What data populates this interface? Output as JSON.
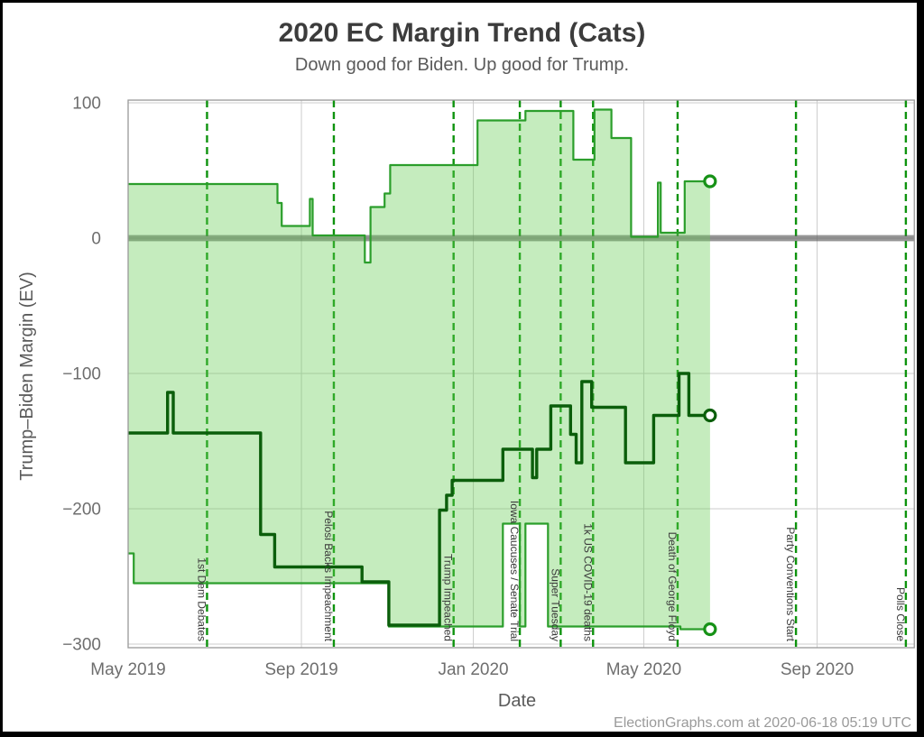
{
  "title": "2020 EC Margin Trend (Cats)",
  "subtitle": "Down good for Biden. Up good for Trump.",
  "footer": "ElectionGraphs.com at 2020-06-18 05:19 UTC",
  "chart_data": {
    "type": "area",
    "title": "2020 EC Margin Trend (Cats)",
    "subtitle": "Down good for Biden. Up good for Trump.",
    "xlabel": "Date",
    "ylabel": "Trump–Biden Margin (EV)",
    "x_domain": [
      "2019-05-01",
      "2020-11-09"
    ],
    "ylim": [
      -303,
      102
    ],
    "grid": true,
    "legend": "none",
    "x_ticks": [
      {
        "date": "2019-05-01",
        "label": "May 2019"
      },
      {
        "date": "2019-09-01",
        "label": "Sep 2019"
      },
      {
        "date": "2020-01-01",
        "label": "Jan 2020"
      },
      {
        "date": "2020-05-01",
        "label": "May 2020"
      },
      {
        "date": "2020-09-01",
        "label": "Sep 2020"
      }
    ],
    "y_ticks": [
      {
        "value": 100,
        "label": "100"
      },
      {
        "value": 0,
        "label": "0"
      },
      {
        "value": -100,
        "label": "−100"
      },
      {
        "value": -200,
        "label": "−200"
      },
      {
        "value": -300,
        "label": "−300"
      }
    ],
    "zero_line_value": 0,
    "series": [
      {
        "name": "upper_bound",
        "role": "upper",
        "style": "step",
        "points": [
          [
            "2019-05-01",
            40
          ],
          [
            "2019-08-15",
            26
          ],
          [
            "2019-08-18",
            9
          ],
          [
            "2019-09-07",
            29
          ],
          [
            "2019-09-09",
            2
          ],
          [
            "2019-10-16",
            -18
          ],
          [
            "2019-10-20",
            23
          ],
          [
            "2019-10-30",
            33
          ],
          [
            "2019-11-03",
            54
          ],
          [
            "2020-01-04",
            87
          ],
          [
            "2020-02-07",
            94
          ],
          [
            "2020-03-12",
            58
          ],
          [
            "2020-03-27",
            95
          ],
          [
            "2020-04-08",
            74
          ],
          [
            "2020-04-22",
            1
          ],
          [
            "2020-05-11",
            41
          ],
          [
            "2020-05-13",
            4
          ],
          [
            "2020-05-30",
            42
          ],
          [
            "2020-06-17",
            42
          ]
        ]
      },
      {
        "name": "median",
        "role": "center",
        "style": "step",
        "points": [
          [
            "2019-05-01",
            -144
          ],
          [
            "2019-05-29",
            -114
          ],
          [
            "2019-06-02",
            -144
          ],
          [
            "2019-08-03",
            -219
          ],
          [
            "2019-08-13",
            -243
          ],
          [
            "2019-10-14",
            -254
          ],
          [
            "2019-11-02",
            -286
          ],
          [
            "2019-12-08",
            -201
          ],
          [
            "2019-12-13",
            -190
          ],
          [
            "2019-12-17",
            -179
          ],
          [
            "2020-01-22",
            -156
          ],
          [
            "2020-02-12",
            -177
          ],
          [
            "2020-02-15",
            -156
          ],
          [
            "2020-02-25",
            -124
          ],
          [
            "2020-03-10",
            -145
          ],
          [
            "2020-03-14",
            -166
          ],
          [
            "2020-03-18",
            -106
          ],
          [
            "2020-03-25",
            -125
          ],
          [
            "2020-04-18",
            -166
          ],
          [
            "2020-05-08",
            -131
          ],
          [
            "2020-05-26",
            -100
          ],
          [
            "2020-06-02",
            -131
          ],
          [
            "2020-06-17",
            -131
          ]
        ]
      },
      {
        "name": "lower_bound",
        "role": "lower",
        "style": "step",
        "points": [
          [
            "2019-05-01",
            -233
          ],
          [
            "2019-05-05",
            -255
          ],
          [
            "2019-11-02",
            -287
          ],
          [
            "2020-01-22",
            -211
          ],
          [
            "2020-02-03",
            -287
          ],
          [
            "2020-02-07",
            -211
          ],
          [
            "2020-02-23",
            -287
          ],
          [
            "2020-05-27",
            -289
          ],
          [
            "2020-06-17",
            -289
          ]
        ]
      }
    ],
    "events": [
      {
        "date": "2019-06-26",
        "label": "1st Dem Debates"
      },
      {
        "date": "2019-09-24",
        "label": "Pelosi Backs Impeachment"
      },
      {
        "date": "2019-12-18",
        "label": "Trump Impeached"
      },
      {
        "date": "2020-02-03",
        "label": "Iowa Caucuses / Senate Trial"
      },
      {
        "date": "2020-03-03",
        "label": "Super Tuesday"
      },
      {
        "date": "2020-03-26",
        "label": "1k US COVID-19 deaths"
      },
      {
        "date": "2020-05-25",
        "label": "Death of George Floyd"
      },
      {
        "date": "2020-08-17",
        "label": "Party Conventions Start"
      },
      {
        "date": "2020-11-03",
        "label": "Polls Close"
      }
    ],
    "colors": {
      "band_fill": "#66cc55",
      "band_fill_opacity": 0.38,
      "envelope_stroke": "#2b9e2b",
      "median_stroke": "#0b5e0b",
      "event_line": "#0e930e",
      "event_label": "#3a3a3a",
      "zero_band": "#555555",
      "zero_band_opacity": 0.62,
      "grid": "#cdcdcd",
      "plot_frame": "#999999",
      "image_border": "#000000",
      "end_marker_envelope": "#179217",
      "end_marker_median": "#0b5e0b"
    }
  }
}
